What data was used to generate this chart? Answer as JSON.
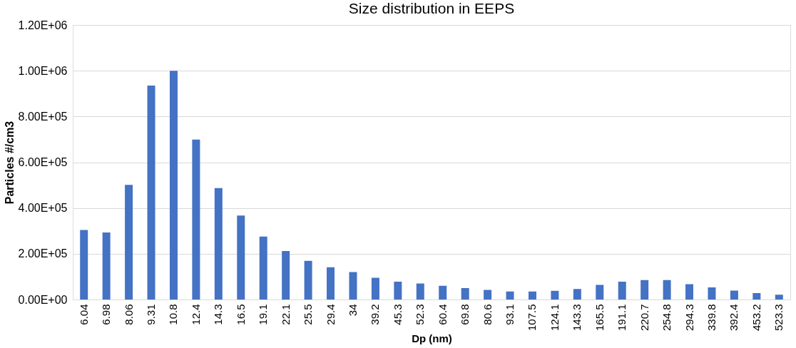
{
  "chart_data": {
    "type": "bar",
    "title": "Size distribution in EEPS",
    "xlabel": "Dp (nm)",
    "ylabel": "Particles #/cm3",
    "categories": [
      "6.04",
      "6.98",
      "8.06",
      "9.31",
      "10.8",
      "12.4",
      "14.3",
      "16.5",
      "19.1",
      "22.1",
      "25.5",
      "29.4",
      "34",
      "39.2",
      "45.3",
      "52.3",
      "60.4",
      "69.8",
      "80.6",
      "93.1",
      "107.5",
      "124.1",
      "143.3",
      "165.5",
      "191.1",
      "220.7",
      "254.8",
      "294.3",
      "339.8",
      "392.4",
      "453.2",
      "523.3"
    ],
    "values": [
      304000,
      293000,
      501000,
      935000,
      1000000,
      699000,
      487000,
      367000,
      275000,
      212000,
      169000,
      141000,
      120000,
      95000,
      78000,
      70000,
      60000,
      50000,
      42000,
      35000,
      35000,
      38000,
      46000,
      64000,
      78000,
      85000,
      85000,
      67000,
      53000,
      39000,
      28000,
      21000
    ],
    "color": "#4472c4",
    "ylim": [
      0,
      1200000
    ],
    "yticks": [
      {
        "value": 0,
        "label": "0.00E+00"
      },
      {
        "value": 200000,
        "label": "2.00E+05"
      },
      {
        "value": 400000,
        "label": "4.00E+05"
      },
      {
        "value": 600000,
        "label": "6.00E+05"
      },
      {
        "value": 800000,
        "label": "8.00E+05"
      },
      {
        "value": 1000000,
        "label": "1.00E+06"
      },
      {
        "value": 1200000,
        "label": "1.20E+06"
      }
    ],
    "grid": "y"
  }
}
